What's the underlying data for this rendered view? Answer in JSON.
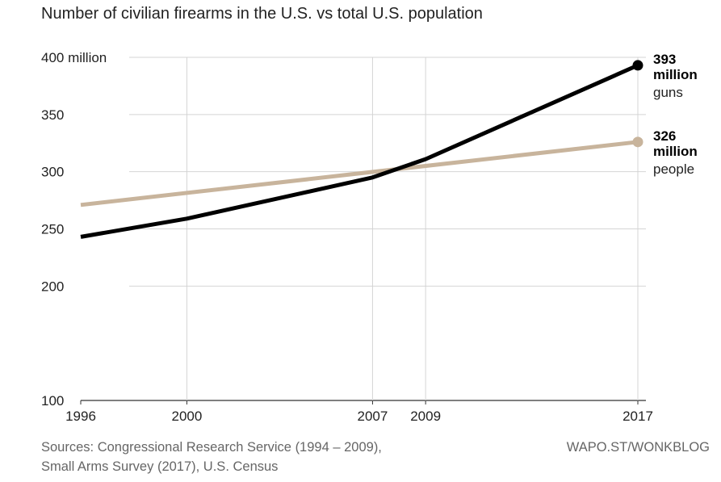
{
  "chart_data": {
    "type": "line",
    "title": "Number of civilian firearms in the U.S. vs total U.S. population",
    "xlabel": "",
    "ylabel": "",
    "xlim": [
      1996,
      2017
    ],
    "ylim": [
      100,
      400
    ],
    "x_ticks": [
      "1996",
      "2000",
      "2007",
      "2009",
      "2017"
    ],
    "y_ticks": [
      "100",
      "200",
      "250",
      "300",
      "350",
      "400 million"
    ],
    "grid": true,
    "series": [
      {
        "key": "guns",
        "color": "#000000",
        "x": [
          1996,
          2000,
          2007,
          2009,
          2017
        ],
        "y": [
          243,
          259,
          295,
          311,
          393
        ],
        "end_value": "393",
        "end_line2": "million",
        "end_unit": "guns"
      },
      {
        "key": "people",
        "color": "#c8b49c",
        "x": [
          1996,
          2017
        ],
        "y": [
          271,
          326
        ],
        "end_value": "326",
        "end_line2": "million",
        "end_unit": "people"
      }
    ]
  },
  "footer": {
    "sources_line1": "Sources: Congressional Research Service (1994 – 2009),",
    "sources_line2": "Small Arms Survey (2017), U.S. Census",
    "credit": "WAPO.ST/WONKBLOG"
  }
}
